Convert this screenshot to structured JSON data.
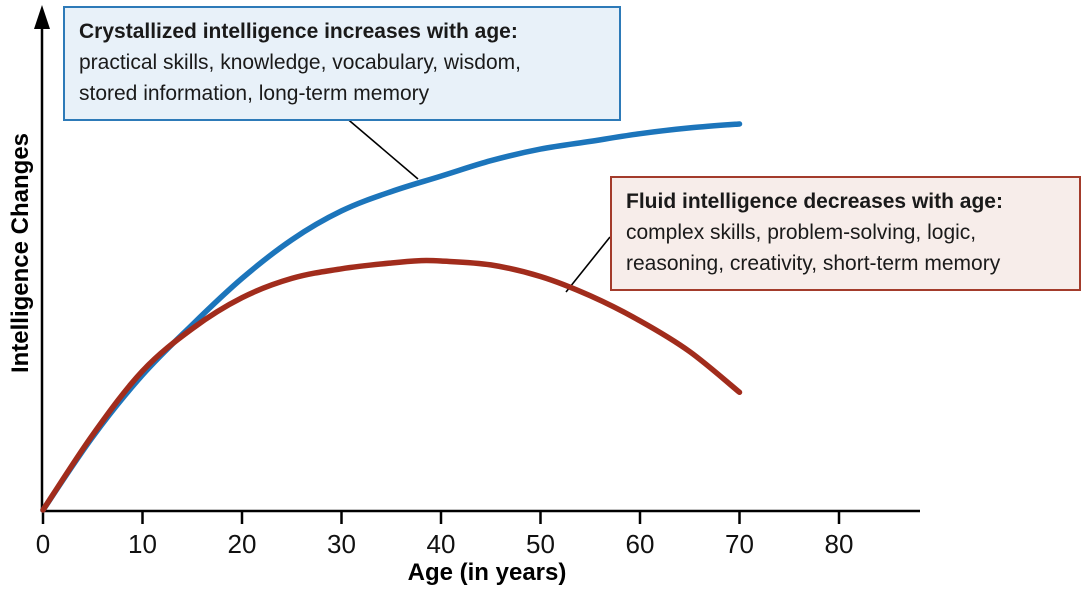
{
  "callouts": {
    "crystallized": {
      "title": "Crystallized intelligence increases with age:",
      "line1": "practical skills, knowledge, vocabulary, wisdom,",
      "line2": "stored information, long-term memory",
      "border_color": "#2d7ab8",
      "fill_color": "#e8f1f9"
    },
    "fluid": {
      "title": "Fluid intelligence decreases with age:",
      "line1": "complex skills, problem-solving, logic,",
      "line2": "reasoning, creativity, short-term memory",
      "border_color": "#a33b2b",
      "fill_color": "#f7edea"
    }
  },
  "chart_data": {
    "type": "line",
    "title": "",
    "xlabel": "Age (in years)",
    "ylabel": "Intelligence Changes",
    "x_ticks": [
      0,
      10,
      20,
      30,
      40,
      50,
      60,
      70,
      80
    ],
    "xlim": [
      0,
      90
    ],
    "ylim": [
      0,
      115
    ],
    "grid": false,
    "legend_position": "none",
    "axis_color": "#000000",
    "series": [
      {
        "id": "crystallized-curve",
        "name": "Crystallized intelligence",
        "color": "#1c75bb",
        "x": [
          0,
          5,
          10,
          15,
          20,
          25,
          30,
          35,
          40,
          45,
          50,
          55,
          60,
          65,
          70
        ],
        "y": [
          0,
          19,
          35,
          48,
          60,
          70,
          77.5,
          82.5,
          86.5,
          90.5,
          93.5,
          95.5,
          97.5,
          99,
          100
        ]
      },
      {
        "id": "fluid-curve",
        "name": "Fluid intelligence",
        "color": "#a12c1c",
        "x": [
          0,
          5,
          10,
          15,
          20,
          25,
          30,
          35,
          38,
          40,
          45,
          50,
          55,
          60,
          65,
          70
        ],
        "y": [
          0,
          19.5,
          36,
          47,
          55,
          60,
          62.5,
          64,
          64.6,
          64.5,
          63.5,
          60.5,
          55.5,
          49,
          41,
          30.5
        ]
      }
    ]
  }
}
